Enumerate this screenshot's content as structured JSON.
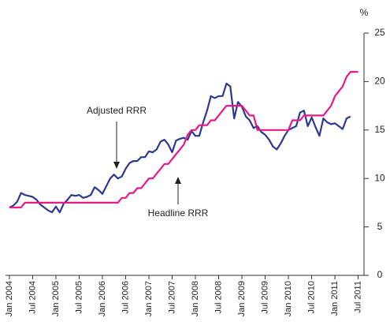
{
  "chart_data": {
    "type": "line",
    "y_label": "%",
    "annotations": [
      "Adjusted RRR",
      "Headline RRR"
    ],
    "x": [
      0,
      1,
      2,
      3,
      4,
      5,
      6,
      7,
      8,
      9,
      10,
      11,
      12,
      13,
      14,
      15,
      16,
      17,
      18,
      19,
      20,
      21,
      22,
      23,
      24,
      25,
      26,
      27,
      28,
      29,
      30,
      31,
      32,
      33,
      34,
      35,
      36,
      37,
      38,
      39,
      40,
      41,
      42,
      43,
      44,
      45,
      46,
      47,
      48,
      49,
      50,
      51,
      52,
      53,
      54,
      55,
      56,
      57,
      58,
      59,
      60,
      61,
      62,
      63,
      64,
      65,
      66,
      67,
      68,
      69,
      70,
      71,
      72,
      73,
      74,
      75,
      76,
      77,
      78,
      79,
      80,
      81,
      82,
      83,
      84,
      85,
      86,
      87,
      88,
      89,
      90
    ],
    "series": [
      {
        "name": "Adjusted RRR",
        "color": "#2b3990",
        "values": [
          7.0,
          7.2,
          7.6,
          8.5,
          8.3,
          8.2,
          8.1,
          7.8,
          7.3,
          7.0,
          6.7,
          6.5,
          7.1,
          6.5,
          7.4,
          7.8,
          8.3,
          8.2,
          8.3,
          8.0,
          8.1,
          8.3,
          9.1,
          8.8,
          8.4,
          9.2,
          10.0,
          10.4,
          10.0,
          10.2,
          11.0,
          11.6,
          11.8,
          11.8,
          12.2,
          12.2,
          12.8,
          12.7,
          13.0,
          13.8,
          14.0,
          13.5,
          12.7,
          13.9,
          14.1,
          14.2,
          14.0,
          14.9,
          14.4,
          14.4,
          15.8,
          17.0,
          18.5,
          18.3,
          18.5,
          18.5,
          19.8,
          19.5,
          16.2,
          17.9,
          17.4,
          16.4,
          16.0,
          15.2,
          15.4,
          14.8,
          14.5,
          14.0,
          13.3,
          13.0,
          13.6,
          14.4,
          15.0,
          15.2,
          15.4,
          16.8,
          17.0,
          15.4,
          16.3,
          15.3,
          14.4,
          16.2,
          15.8,
          15.6,
          15.7,
          15.4,
          15.1,
          16.2,
          16.4,
          null,
          null
        ]
      },
      {
        "name": "Headline RRR",
        "color": "#e6198a",
        "values": [
          7,
          7,
          7,
          7,
          7.5,
          7.5,
          7.5,
          7.5,
          7.5,
          7.5,
          7.5,
          7.5,
          7.5,
          7.5,
          7.5,
          7.5,
          7.5,
          7.5,
          7.5,
          7.5,
          7.5,
          7.5,
          7.5,
          7.5,
          7.5,
          7.5,
          7.5,
          7.5,
          7.5,
          8,
          8,
          8.5,
          8.5,
          9,
          9,
          9.5,
          10,
          10,
          10.5,
          11,
          11.5,
          11.5,
          12,
          12.5,
          13,
          13.5,
          14.5,
          15,
          15,
          15.5,
          15.5,
          15.5,
          16,
          16,
          16.5,
          17,
          17.5,
          17.5,
          17.5,
          17.5,
          17.5,
          17,
          16.5,
          16.5,
          15,
          15,
          15,
          15,
          15,
          15,
          15,
          15,
          15,
          16,
          16,
          16,
          16.5,
          16.5,
          16.5,
          16.5,
          16.5,
          16.5,
          17,
          17.5,
          18.5,
          19,
          19.5,
          20.5,
          21,
          21,
          21
        ]
      }
    ],
    "xlim": [
      -1,
      91.5
    ],
    "xticks": [
      {
        "value": 0,
        "label": "Jan 2004"
      },
      {
        "value": 6,
        "label": "Jul 2004"
      },
      {
        "value": 12,
        "label": "Jan 2005"
      },
      {
        "value": 18,
        "label": "Jul 2005"
      },
      {
        "value": 24,
        "label": "Jan 2006"
      },
      {
        "value": 30,
        "label": "Jul 2006"
      },
      {
        "value": 36,
        "label": "Jan 2007"
      },
      {
        "value": 42,
        "label": "Jul 2007"
      },
      {
        "value": 48,
        "label": "Jan 2008"
      },
      {
        "value": 54,
        "label": "Jul 2008"
      },
      {
        "value": 60,
        "label": "Jan 2009"
      },
      {
        "value": 66,
        "label": "Jul 2009"
      },
      {
        "value": 72,
        "label": "Jan 2010"
      },
      {
        "value": 78,
        "label": "Jul 2010"
      },
      {
        "value": 84,
        "label": "Jan 2011"
      },
      {
        "value": 90,
        "label": "Jul 2011"
      }
    ],
    "ylim": [
      0,
      25
    ],
    "yticks": [
      0,
      5,
      10,
      15,
      20,
      25
    ],
    "grid": false
  }
}
